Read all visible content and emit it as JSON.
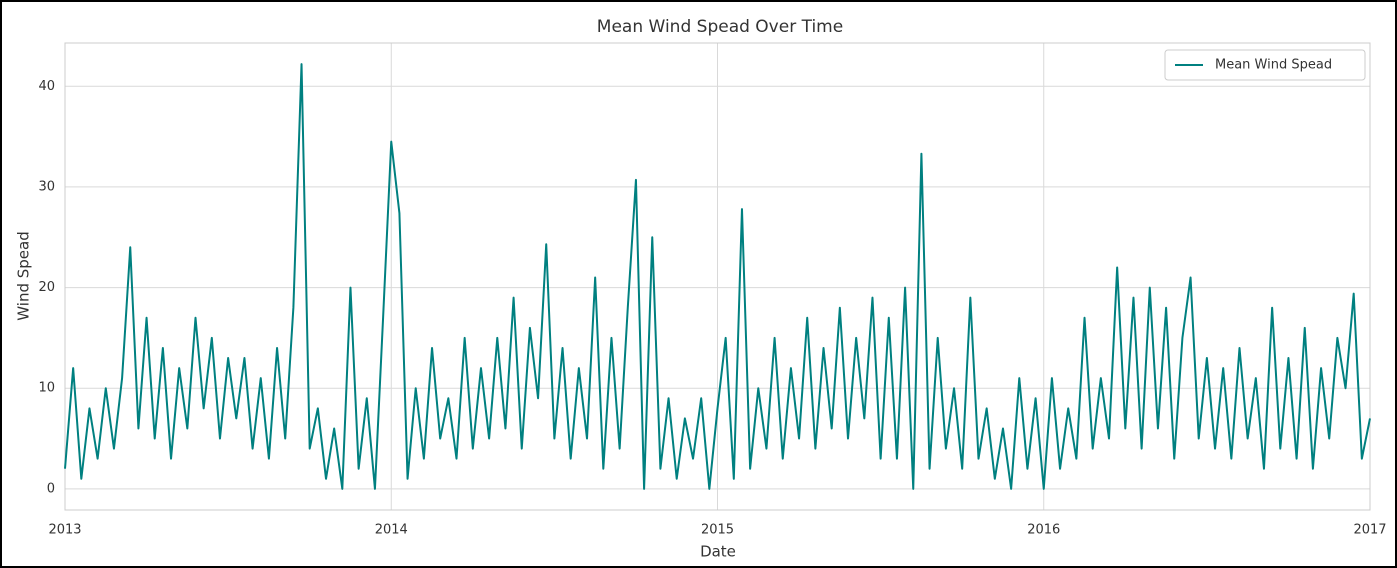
{
  "chart_data": {
    "type": "line",
    "title": "Mean Wind Spead Over Time",
    "x_label": "Date",
    "y_label": "Wind Spead",
    "x": [
      2013,
      2013.025,
      2013.05,
      2013.075,
      2013.1,
      2013.125,
      2013.15,
      2013.175,
      2013.2,
      2013.225,
      2013.25,
      2013.275,
      2013.3,
      2013.325,
      2013.35,
      2013.375,
      2013.4,
      2013.425,
      2013.45,
      2013.475,
      2013.5,
      2013.525,
      2013.55,
      2013.575,
      2013.6,
      2013.625,
      2013.65,
      2013.675,
      2013.7,
      2013.725,
      2013.75,
      2013.775,
      2013.8,
      2013.825,
      2013.85,
      2013.875,
      2013.9,
      2013.925,
      2013.95,
      2013.975,
      2014,
      2014.025,
      2014.05,
      2014.075,
      2014.1,
      2014.125,
      2014.15,
      2014.175,
      2014.2,
      2014.225,
      2014.25,
      2014.275,
      2014.3,
      2014.325,
      2014.35,
      2014.375,
      2014.4,
      2014.425,
      2014.45,
      2014.475,
      2014.5,
      2014.525,
      2014.55,
      2014.575,
      2014.6,
      2014.625,
      2014.65,
      2014.675,
      2014.7,
      2014.725,
      2014.75,
      2014.775,
      2014.8,
      2014.825,
      2014.85,
      2014.875,
      2014.9,
      2014.925,
      2014.95,
      2014.975,
      2015,
      2015.025,
      2015.05,
      2015.075,
      2015.1,
      2015.125,
      2015.15,
      2015.175,
      2015.2,
      2015.225,
      2015.25,
      2015.275,
      2015.3,
      2015.325,
      2015.35,
      2015.375,
      2015.4,
      2015.425,
      2015.45,
      2015.475,
      2015.5,
      2015.525,
      2015.55,
      2015.575,
      2015.6,
      2015.625,
      2015.65,
      2015.675,
      2015.7,
      2015.725,
      2015.75,
      2015.775,
      2015.8,
      2015.825,
      2015.85,
      2015.875,
      2015.9,
      2015.925,
      2015.95,
      2015.975,
      2016,
      2016.025,
      2016.05,
      2016.075,
      2016.1,
      2016.125,
      2016.15,
      2016.175,
      2016.2,
      2016.225,
      2016.25,
      2016.275,
      2016.3,
      2016.325,
      2016.35,
      2016.375,
      2016.4,
      2016.425,
      2016.45,
      2016.475,
      2016.5,
      2016.525,
      2016.55,
      2016.575,
      2016.6,
      2016.625,
      2016.65,
      2016.675,
      2016.7,
      2016.725,
      2016.75,
      2016.775,
      2016.8,
      2016.825,
      2016.85,
      2016.875,
      2016.9,
      2016.925,
      2016.95,
      2016.975,
      2017
    ],
    "series": [
      {
        "name": "Mean Wind Spead",
        "color": "#008080",
        "values": [
          2,
          12,
          1,
          8,
          3,
          10,
          4,
          11,
          24,
          6,
          17,
          5,
          14,
          3,
          12,
          6,
          17,
          8,
          15,
          5,
          13,
          7,
          13,
          4,
          11,
          3,
          14,
          5,
          18,
          42.2,
          4,
          8,
          1,
          6,
          0,
          20,
          2,
          9,
          0,
          17,
          34.5,
          27.4,
          1,
          10,
          3,
          14,
          5,
          9,
          3,
          15,
          4,
          12,
          5,
          15,
          6,
          19,
          4,
          16,
          9,
          24.3,
          5,
          14,
          3,
          12,
          5,
          21,
          2,
          15,
          4,
          18,
          30.7,
          0,
          25,
          2,
          9,
          1,
          7,
          3,
          9,
          0,
          8,
          15,
          1,
          27.8,
          2,
          10,
          4,
          15,
          3,
          12,
          5,
          17,
          4,
          14,
          6,
          18,
          5,
          15,
          7,
          19,
          3,
          17,
          3,
          20,
          0,
          33.3,
          2,
          15,
          4,
          10,
          2,
          19,
          3,
          8,
          1,
          6,
          0,
          11,
          2,
          9,
          0,
          11,
          2,
          8,
          3,
          17,
          4,
          11,
          5,
          22,
          6,
          19,
          4,
          20,
          6,
          18,
          3,
          15,
          21,
          5,
          13,
          4,
          12,
          3,
          14,
          5,
          11,
          2,
          18,
          4,
          13,
          3,
          16,
          2,
          12,
          5,
          15,
          10,
          19.4,
          3,
          7
        ]
      }
    ],
    "xlim": [
      2013,
      2017
    ],
    "xticks": [
      2013,
      2014,
      2015,
      2016,
      2017
    ],
    "ylim": [
      -2.1,
      44.3
    ],
    "yticks": [
      0,
      10,
      20,
      30,
      40
    ],
    "grid": true,
    "legend": "upper right"
  }
}
